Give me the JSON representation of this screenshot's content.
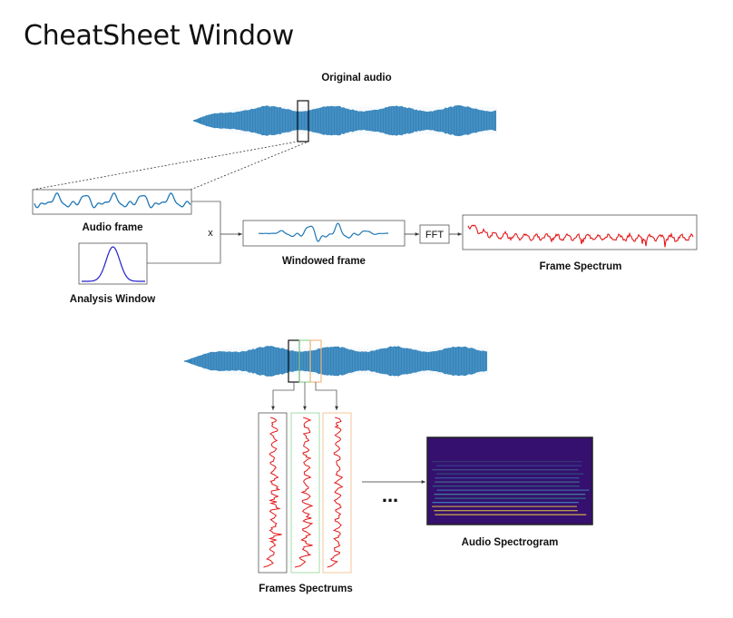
{
  "page": {
    "title": "CheatSheet Window"
  },
  "diagram": {
    "labels": {
      "original_audio": "Original audio",
      "audio_frame": "Audio frame",
      "analysis_window": "Analysis Window",
      "multiply": "x",
      "windowed_frame": "Windowed frame",
      "fft": "FFT",
      "frame_spectrum": "Frame Spectrum",
      "frames_spectrums": "Frames Spectrums",
      "ellipsis": "...",
      "audio_spectrogram": "Audio Spectrogram"
    },
    "colors": {
      "waveform": "#1f77b4",
      "spectrum": "#e31a1c",
      "frame_box_1": "#111111",
      "frame_box_2": "#8fd694",
      "frame_box_3": "#f2b880",
      "spectrogram_bg": "#35106e",
      "spectrogram_bands": [
        "#2a9d8f",
        "#3fa7d6",
        "#52c4b0",
        "#e8c547"
      ]
    },
    "icons": {
      "arrow": "arrow-right-icon",
      "arrow_down": "arrow-down-icon"
    }
  }
}
